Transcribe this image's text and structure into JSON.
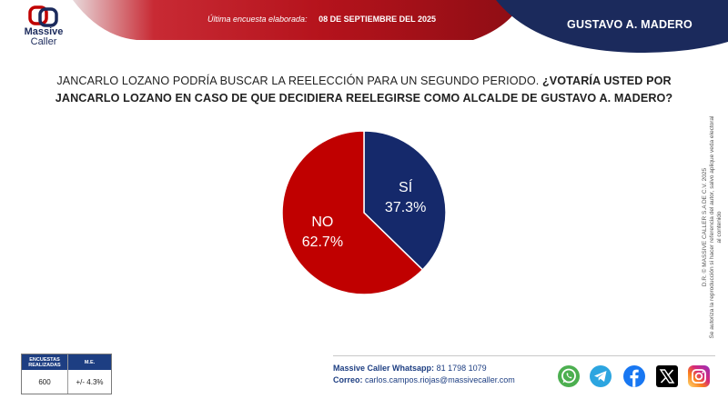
{
  "header": {
    "survey_date_label": "Última encuesta elaborada:",
    "survey_date_value": "08 DE SEPTIEMBRE DEL 2025",
    "region": "GUSTAVO A. MADERO",
    "colors": {
      "red": "#b5131c",
      "navy": "#1b2a5c"
    }
  },
  "logo": {
    "line1": "Massive",
    "line2": "Caller"
  },
  "question": {
    "intro": "JANCARLO LOZANO PODRÍA BUSCAR LA REELECCIÓN PARA UN SEGUNDO PERIODO.",
    "bold": "¿VOTARÍA USTED POR JANCARLO LOZANO EN CASO DE QUE DECIDIERA REELEGIRSE COMO ALCALDE DE GUSTAVO A. MADERO?"
  },
  "chart_data": {
    "type": "pie",
    "categories": [
      "SÍ",
      "NO"
    ],
    "values": [
      37.3,
      62.7
    ],
    "value_labels": [
      "37.3%",
      "62.7%"
    ],
    "colors": [
      "#15296b",
      "#c00000"
    ],
    "title": "",
    "legend": "none"
  },
  "stats": {
    "header1": "ENCUESTAS REALIZADAS",
    "header2": "M.E.",
    "value1": "600",
    "value2": "+/- 4.3%"
  },
  "contact": {
    "whatsapp_label": "Massive Caller Whatsapp:",
    "whatsapp_value": "81 1798 1079",
    "email_label": "Correo:",
    "email_value": "carlos.campos.riojas@massivecaller.com"
  },
  "disclaimer": {
    "line1": "D.R. © MASSIVE CALLER S.A DE C.V. 2025",
    "line2": "Se autoriza la reproducción si hacer referencia del autor, salvo aplique veda electoral al contenido"
  },
  "social": {
    "icons": [
      "whatsapp-icon",
      "telegram-icon",
      "facebook-icon",
      "x-icon",
      "instagram-icon"
    ],
    "colors": [
      "#4caf50",
      "#2ca5e0",
      "#1877f2",
      "#000000",
      "#d62976"
    ]
  }
}
